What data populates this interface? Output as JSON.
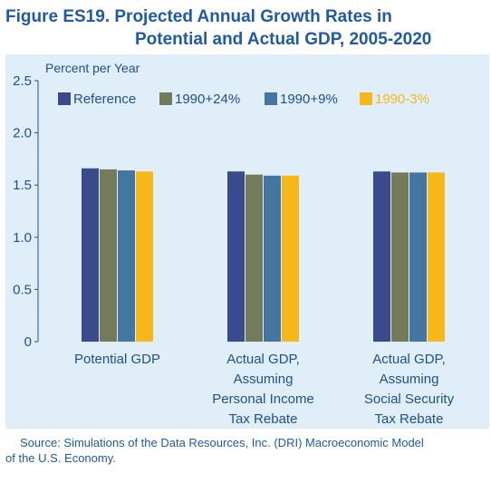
{
  "figure": {
    "title_line1": "Figure ES19.  Projected Annual Growth Rates in",
    "title_line2": "Potential and Actual GDP, 2005-2020",
    "source_line1": "Source: Simulations of the Data Resources, Inc. (DRI) Macroeconomic Model",
    "source_line2": "of the U.S. Economy."
  },
  "chart_data": {
    "type": "bar",
    "ylabel": "Percent per Year",
    "ylim": [
      0,
      2.5
    ],
    "yticks": [
      "0",
      "0.5",
      "1.0",
      "1.5",
      "2.0",
      "2.5"
    ],
    "grid": false,
    "legend_position": "top",
    "categories": [
      [
        "Potential GDP"
      ],
      [
        "Actual GDP,",
        "Assuming",
        "Personal Income",
        "Tax Rebate"
      ],
      [
        "Actual GDP,",
        "Assuming",
        "Social Security",
        "Tax Rebate"
      ]
    ],
    "series": [
      {
        "name": "Reference",
        "color": "#3b4a8c",
        "label_color": "#1f4f8f",
        "values": [
          1.66,
          1.63,
          1.63
        ]
      },
      {
        "name": "1990+24%",
        "color": "#737b5b",
        "label_color": "#1f4f8f",
        "values": [
          1.65,
          1.6,
          1.62
        ]
      },
      {
        "name": "1990+9%",
        "color": "#4575a1",
        "label_color": "#1f4f8f",
        "values": [
          1.64,
          1.59,
          1.62
        ]
      },
      {
        "name": "1990-3%",
        "color": "#f6b718",
        "label_color": "#f6b718",
        "values": [
          1.63,
          1.59,
          1.62
        ]
      }
    ]
  }
}
